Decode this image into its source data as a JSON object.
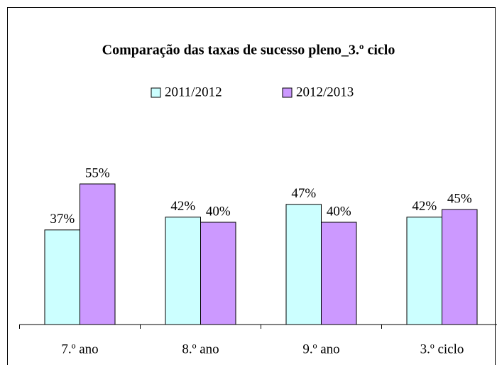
{
  "chart_data": {
    "type": "bar",
    "title": "Comparação das taxas de sucesso pleno_3.º ciclo",
    "categories": [
      "7.º ano",
      "8.º ano",
      "9.º ano",
      "3.º ciclo"
    ],
    "series": [
      {
        "name": "2011/2012",
        "color": "#ccffff",
        "values": [
          37,
          42,
          47,
          42
        ],
        "value_labels": [
          "37%",
          "42%",
          "47%",
          "42%"
        ]
      },
      {
        "name": "2012/2013",
        "color": "#cc99ff",
        "values": [
          55,
          40,
          40,
          45
        ],
        "value_labels": [
          "55%",
          "40%",
          "40%",
          "45%"
        ]
      }
    ],
    "ylim": [
      0,
      60
    ]
  }
}
